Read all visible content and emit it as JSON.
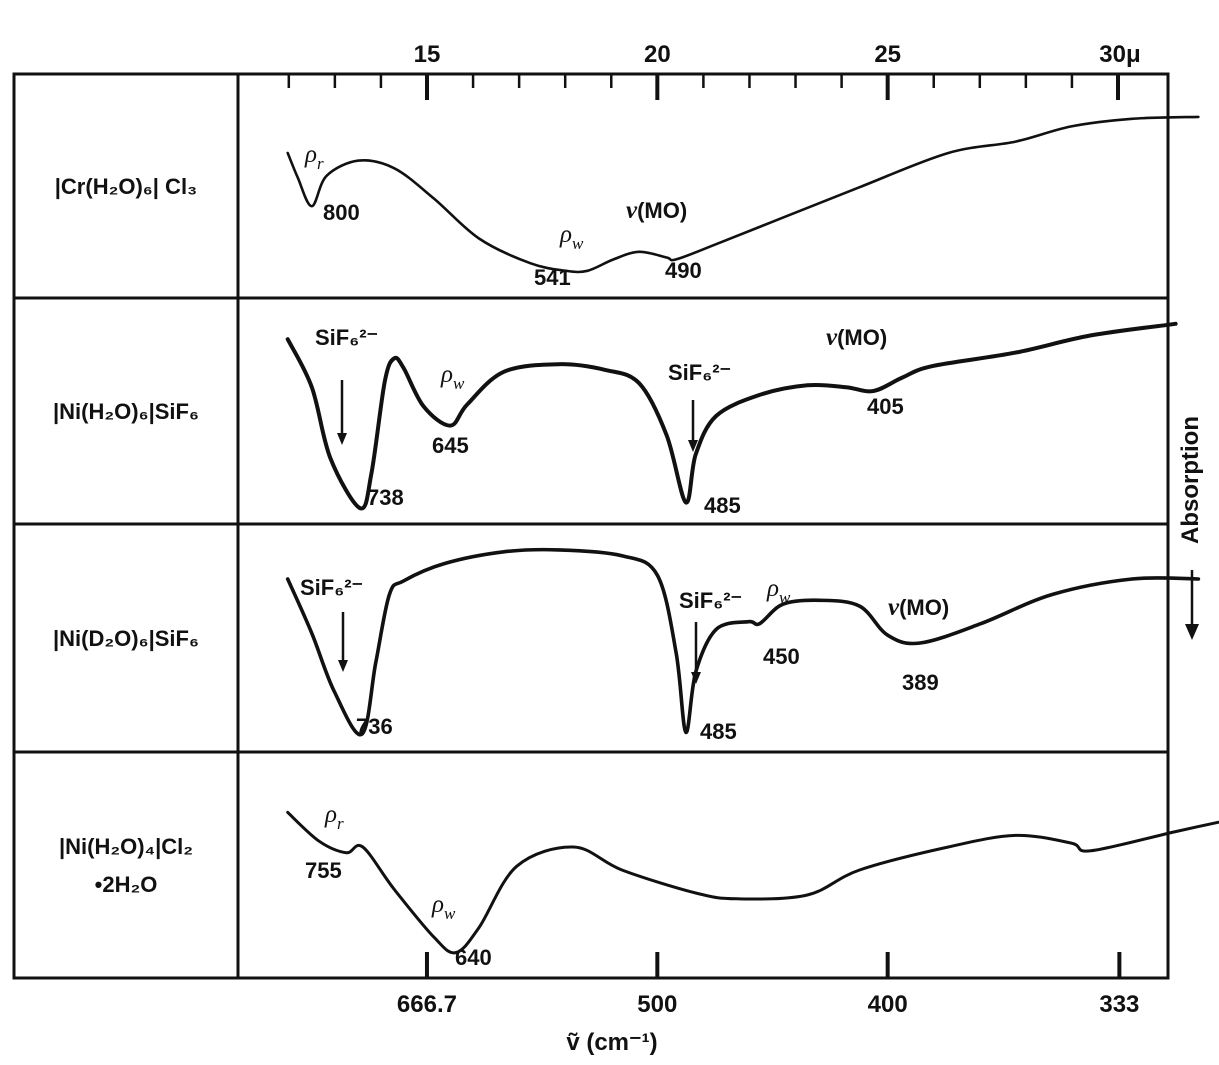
{
  "chart_data": {
    "type": "line",
    "top_axis": {
      "unit_label": "μ",
      "ticks": [
        {
          "value": 15,
          "label": "15"
        },
        {
          "value": 20,
          "label": "20"
        },
        {
          "value": 25,
          "label": "25"
        },
        {
          "value": 30,
          "label": "30μ"
        }
      ]
    },
    "bottom_axis": {
      "label": "ṽ (cm⁻¹)",
      "ticks": [
        {
          "value": 666.7,
          "label": "666.7"
        },
        {
          "value": 500,
          "label": "500"
        },
        {
          "value": 400,
          "label": "400"
        },
        {
          "value": 333,
          "label": "333"
        }
      ]
    },
    "y_axis_label": "Absorption",
    "panels": [
      {
        "compound": "[Cr(H2O)6]Cl3",
        "label_lines": [
          "|Cr(H₂O)₆| Cl₃"
        ],
        "annotations": [
          {
            "text": "ρr",
            "x_cm": 810
          },
          {
            "text": "800",
            "x_cm": 800
          },
          {
            "text": "ρw",
            "x_cm": 548
          },
          {
            "text": "541",
            "x_cm": 541
          },
          {
            "text": "ν(MO)",
            "x_cm": 495
          },
          {
            "text": "490",
            "x_cm": 490
          }
        ],
        "bands": [
          {
            "x": 800,
            "assignment": "ρr"
          },
          {
            "x": 541,
            "assignment": "ρw"
          },
          {
            "x": 490,
            "assignment": "ν(MO)"
          }
        ],
        "trace": [
          [
            835,
            0.3
          ],
          [
            820,
            0.43
          ],
          [
            800,
            0.58
          ],
          [
            780,
            0.42
          ],
          [
            740,
            0.34
          ],
          [
            700,
            0.38
          ],
          [
            660,
            0.54
          ],
          [
            620,
            0.75
          ],
          [
            580,
            0.88
          ],
          [
            555,
            0.92
          ],
          [
            541,
            0.92
          ],
          [
            525,
            0.86
          ],
          [
            510,
            0.82
          ],
          [
            495,
            0.85
          ],
          [
            490,
            0.86
          ],
          [
            470,
            0.78
          ],
          [
            440,
            0.64
          ],
          [
            410,
            0.48
          ],
          [
            380,
            0.3
          ],
          [
            360,
            0.24
          ],
          [
            345,
            0.16
          ],
          [
            330,
            0.12
          ],
          [
            315,
            0.11
          ]
        ]
      },
      {
        "compound": "[Ni(H2O)6]SiF6",
        "label_lines": [
          "|Ni(H₂O)₆|SiF₆"
        ],
        "annotations": [
          {
            "text": "SiF₆²⁻",
            "x_cm": 745
          },
          {
            "text": "738",
            "x_cm": 738
          },
          {
            "text": "ρw",
            "x_cm": 650
          },
          {
            "text": "645",
            "x_cm": 645
          },
          {
            "text": "SiF₆²⁻",
            "x_cm": 485
          },
          {
            "text": "485",
            "x_cm": 485
          },
          {
            "text": "ν(MO)",
            "x_cm": 410
          },
          {
            "text": "405",
            "x_cm": 405
          }
        ],
        "bands": [
          {
            "x": 738,
            "assignment": "SiF₆²⁻"
          },
          {
            "x": 645,
            "assignment": "ρw"
          },
          {
            "x": 485,
            "assignment": "SiF₆²⁻"
          },
          {
            "x": 405,
            "assignment": "ν(MO)"
          }
        ],
        "trace": [
          [
            835,
            0.1
          ],
          [
            800,
            0.35
          ],
          [
            775,
            0.72
          ],
          [
            738,
            0.98
          ],
          [
            725,
            0.8
          ],
          [
            710,
            0.32
          ],
          [
            700,
            0.2
          ],
          [
            690,
            0.25
          ],
          [
            670,
            0.45
          ],
          [
            645,
            0.55
          ],
          [
            630,
            0.44
          ],
          [
            600,
            0.27
          ],
          [
            560,
            0.23
          ],
          [
            530,
            0.26
          ],
          [
            510,
            0.33
          ],
          [
            495,
            0.6
          ],
          [
            485,
            0.95
          ],
          [
            480,
            0.7
          ],
          [
            470,
            0.5
          ],
          [
            450,
            0.39
          ],
          [
            430,
            0.34
          ],
          [
            415,
            0.35
          ],
          [
            405,
            0.37
          ],
          [
            395,
            0.3
          ],
          [
            385,
            0.24
          ],
          [
            360,
            0.17
          ],
          [
            340,
            0.08
          ],
          [
            320,
            0.02
          ]
        ]
      },
      {
        "compound": "[Ni(D2O)6]SiF6",
        "label_lines": [
          "|Ni(D₂O)₆|SiF₆"
        ],
        "annotations": [
          {
            "text": "SiF₆²⁻",
            "x_cm": 745
          },
          {
            "text": "736",
            "x_cm": 736
          },
          {
            "text": "SiF₆²⁻",
            "x_cm": 485
          },
          {
            "text": "ρw",
            "x_cm": 458
          },
          {
            "text": "485",
            "x_cm": 485
          },
          {
            "text": "450",
            "x_cm": 450
          },
          {
            "text": "ν(MO)",
            "x_cm": 395
          },
          {
            "text": "389",
            "x_cm": 389
          }
        ],
        "bands": [
          {
            "x": 736,
            "assignment": "SiF₆²⁻"
          },
          {
            "x": 485,
            "assignment": "SiF₆²⁻"
          },
          {
            "x": 450,
            "assignment": "ρw"
          },
          {
            "x": 389,
            "assignment": "ν(MO)"
          }
        ],
        "trace": [
          [
            835,
            0.17
          ],
          [
            800,
            0.45
          ],
          [
            770,
            0.75
          ],
          [
            736,
            0.97
          ],
          [
            720,
            0.6
          ],
          [
            705,
            0.25
          ],
          [
            690,
            0.18
          ],
          [
            650,
            0.09
          ],
          [
            600,
            0.03
          ],
          [
            560,
            0.02
          ],
          [
            520,
            0.05
          ],
          [
            500,
            0.15
          ],
          [
            490,
            0.55
          ],
          [
            485,
            0.96
          ],
          [
            480,
            0.65
          ],
          [
            470,
            0.43
          ],
          [
            455,
            0.39
          ],
          [
            450,
            0.4
          ],
          [
            440,
            0.3
          ],
          [
            425,
            0.28
          ],
          [
            410,
            0.31
          ],
          [
            400,
            0.46
          ],
          [
            389,
            0.5
          ],
          [
            370,
            0.4
          ],
          [
            350,
            0.25
          ],
          [
            330,
            0.17
          ],
          [
            315,
            0.17
          ]
        ]
      },
      {
        "compound": "[Ni(H2O)4]Cl2·2H2O",
        "label_lines": [
          "|Ni(H₂O)₄|Cl₂",
          "•2H₂O"
        ],
        "annotations": [
          {
            "text": "ρr",
            "x_cm": 765
          },
          {
            "text": "755",
            "x_cm": 755
          },
          {
            "text": "ρw",
            "x_cm": 648
          },
          {
            "text": "640",
            "x_cm": 640
          }
        ],
        "bands": [
          {
            "x": 755,
            "assignment": "ρr"
          },
          {
            "x": 640,
            "assignment": "ρw"
          }
        ],
        "trace": [
          [
            835,
            0.2
          ],
          [
            790,
            0.35
          ],
          [
            755,
            0.41
          ],
          [
            735,
            0.38
          ],
          [
            700,
            0.6
          ],
          [
            660,
            0.85
          ],
          [
            640,
            0.93
          ],
          [
            620,
            0.8
          ],
          [
            590,
            0.48
          ],
          [
            550,
            0.38
          ],
          [
            520,
            0.5
          ],
          [
            480,
            0.62
          ],
          [
            460,
            0.65
          ],
          [
            430,
            0.63
          ],
          [
            410,
            0.5
          ],
          [
            380,
            0.38
          ],
          [
            360,
            0.32
          ],
          [
            345,
            0.36
          ],
          [
            340,
            0.4
          ],
          [
            320,
            0.3
          ],
          [
            305,
            0.22
          ]
        ]
      }
    ]
  }
}
